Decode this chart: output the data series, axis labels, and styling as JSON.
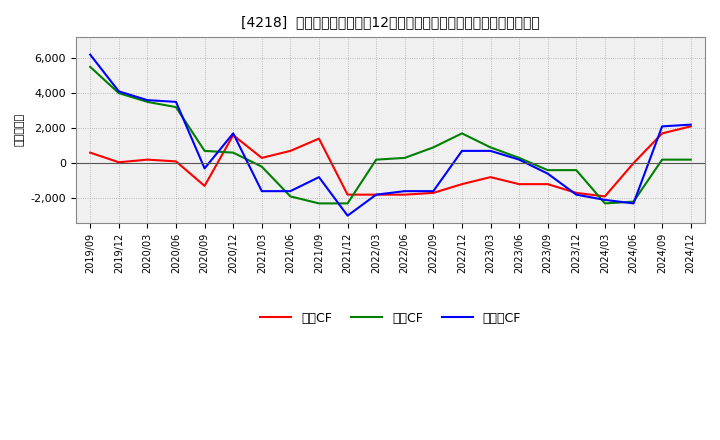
{
  "title": "[4218]  キャッシュフローの12か月移動合計の対前年同期増減額の推移",
  "ylabel": "（百万円）",
  "background_color": "#ffffff",
  "plot_bg_color": "#f0f0f0",
  "grid_color": "#aaaaaa",
  "dates": [
    "2019/09",
    "2019/12",
    "2020/03",
    "2020/06",
    "2020/09",
    "2020/12",
    "2021/03",
    "2021/06",
    "2021/09",
    "2021/12",
    "2022/03",
    "2022/06",
    "2022/09",
    "2022/12",
    "2023/03",
    "2023/06",
    "2023/09",
    "2023/12",
    "2024/03",
    "2024/06",
    "2024/09",
    "2024/12"
  ],
  "eigyo_cf": [
    600,
    50,
    200,
    100,
    -1300,
    1600,
    300,
    700,
    1400,
    -1800,
    -1800,
    -1800,
    -1700,
    -1200,
    -800,
    -1200,
    -1200,
    -1700,
    -1900,
    0,
    1700,
    2100
  ],
  "toshi_cf": [
    5500,
    4000,
    3500,
    3200,
    700,
    600,
    -200,
    -1900,
    -2300,
    -2300,
    200,
    300,
    900,
    1700,
    900,
    300,
    -400,
    -400,
    -2300,
    -2200,
    200,
    200
  ],
  "free_cf": [
    6200,
    4100,
    3600,
    3500,
    -300,
    1700,
    -1600,
    -1600,
    -800,
    -3000,
    -1800,
    -1600,
    -1600,
    700,
    700,
    200,
    -600,
    -1800,
    -2100,
    -2300,
    2100,
    2200
  ],
  "eigyo_color": "#ff0000",
  "toshi_color": "#008000",
  "free_color": "#0000ff",
  "ylim": [
    -3400,
    7200
  ],
  "yticks": [
    -2000,
    0,
    2000,
    4000,
    6000
  ],
  "legend_labels": [
    "営業CF",
    "投資CF",
    "フリーCF"
  ]
}
